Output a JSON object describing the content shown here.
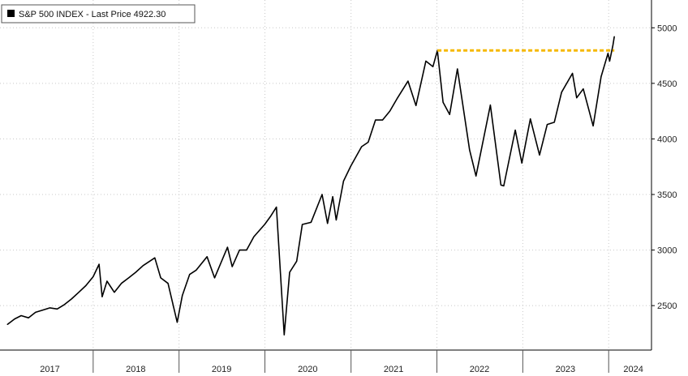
{
  "chart_data": {
    "type": "line",
    "legend": {
      "label": "S&P 500 INDEX - Last Price 4922.30",
      "placement": "top-left"
    },
    "grid": true,
    "series": [
      {
        "name": "S&P 500 INDEX - Last Price 4922.30",
        "color": "#000000",
        "points": [
          [
            "2017-01-01",
            2330
          ],
          [
            "2017-02-01",
            2380
          ],
          [
            "2017-03-01",
            2410
          ],
          [
            "2017-04-01",
            2390
          ],
          [
            "2017-05-01",
            2440
          ],
          [
            "2017-06-01",
            2460
          ],
          [
            "2017-07-01",
            2480
          ],
          [
            "2017-08-01",
            2470
          ],
          [
            "2017-09-01",
            2510
          ],
          [
            "2017-10-01",
            2560
          ],
          [
            "2017-11-01",
            2620
          ],
          [
            "2017-12-01",
            2680
          ],
          [
            "2018-01-01",
            2760
          ],
          [
            "2018-01-26",
            2872
          ],
          [
            "2018-02-08",
            2580
          ],
          [
            "2018-03-01",
            2720
          ],
          [
            "2018-04-01",
            2620
          ],
          [
            "2018-05-01",
            2700
          ],
          [
            "2018-06-01",
            2750
          ],
          [
            "2018-07-01",
            2800
          ],
          [
            "2018-08-01",
            2860
          ],
          [
            "2018-09-20",
            2930
          ],
          [
            "2018-10-15",
            2750
          ],
          [
            "2018-11-15",
            2700
          ],
          [
            "2018-12-24",
            2350
          ],
          [
            "2019-01-15",
            2590
          ],
          [
            "2019-02-15",
            2780
          ],
          [
            "2019-03-15",
            2820
          ],
          [
            "2019-04-30",
            2940
          ],
          [
            "2019-06-01",
            2750
          ],
          [
            "2019-07-26",
            3025
          ],
          [
            "2019-08-15",
            2850
          ],
          [
            "2019-09-15",
            3000
          ],
          [
            "2019-10-15",
            3000
          ],
          [
            "2019-11-15",
            3120
          ],
          [
            "2019-12-31",
            3230
          ],
          [
            "2020-01-24",
            3300
          ],
          [
            "2020-02-19",
            3386
          ],
          [
            "2020-03-23",
            2237
          ],
          [
            "2020-04-15",
            2800
          ],
          [
            "2020-05-15",
            2900
          ],
          [
            "2020-06-08",
            3230
          ],
          [
            "2020-07-15",
            3250
          ],
          [
            "2020-08-31",
            3500
          ],
          [
            "2020-09-23",
            3240
          ],
          [
            "2020-10-15",
            3480
          ],
          [
            "2020-10-30",
            3270
          ],
          [
            "2020-11-30",
            3620
          ],
          [
            "2020-12-31",
            3756
          ],
          [
            "2021-02-15",
            3930
          ],
          [
            "2021-03-15",
            3970
          ],
          [
            "2021-04-15",
            4170
          ],
          [
            "2021-05-15",
            4170
          ],
          [
            "2021-06-15",
            4250
          ],
          [
            "2021-07-15",
            4360
          ],
          [
            "2021-08-31",
            4520
          ],
          [
            "2021-10-04",
            4300
          ],
          [
            "2021-11-15",
            4700
          ],
          [
            "2021-12-15",
            4650
          ],
          [
            "2022-01-03",
            4796
          ],
          [
            "2022-01-27",
            4330
          ],
          [
            "2022-02-24",
            4220
          ],
          [
            "2022-03-29",
            4630
          ],
          [
            "2022-05-20",
            3900
          ],
          [
            "2022-06-16",
            3666
          ],
          [
            "2022-08-16",
            4305
          ],
          [
            "2022-09-30",
            3585
          ],
          [
            "2022-10-12",
            3577
          ],
          [
            "2022-11-30",
            4080
          ],
          [
            "2022-12-28",
            3783
          ],
          [
            "2023-02-02",
            4180
          ],
          [
            "2023-03-13",
            3855
          ],
          [
            "2023-04-15",
            4130
          ],
          [
            "2023-05-15",
            4150
          ],
          [
            "2023-06-15",
            4420
          ],
          [
            "2023-07-31",
            4590
          ],
          [
            "2023-08-18",
            4370
          ],
          [
            "2023-09-15",
            4450
          ],
          [
            "2023-10-27",
            4117
          ],
          [
            "2023-11-30",
            4560
          ],
          [
            "2023-12-29",
            4770
          ],
          [
            "2024-01-05",
            4700
          ],
          [
            "2024-01-19",
            4840
          ],
          [
            "2024-01-25",
            4922
          ]
        ]
      }
    ],
    "reference_line": {
      "color": "#f5b800",
      "y": 4796,
      "x_start": "2022-01-03",
      "x_end": "2024-01-25"
    },
    "x_axis": {
      "type": "date",
      "range": [
        "2016-12-01",
        "2024-07-01"
      ],
      "tick_labels": [
        "2017",
        "2018",
        "2019",
        "2020",
        "2021",
        "2022",
        "2023",
        "2024"
      ],
      "tick_dates": [
        "2017-07-01",
        "2018-07-01",
        "2019-07-01",
        "2020-07-01",
        "2021-07-01",
        "2022-07-01",
        "2023-07-01",
        "2024-04-15"
      ],
      "boundary_dates": [
        "2018-01-01",
        "2019-01-01",
        "2020-01-01",
        "2021-01-01",
        "2022-01-01",
        "2023-01-01",
        "2024-01-01"
      ]
    },
    "y_axis": {
      "position": "right",
      "range": [
        2100,
        5250
      ],
      "ticks": [
        2500,
        3000,
        3500,
        4000,
        4500,
        5000
      ],
      "tick_labels": [
        "2500",
        "3000",
        "3500",
        "4000",
        "4500",
        "5000"
      ]
    }
  }
}
